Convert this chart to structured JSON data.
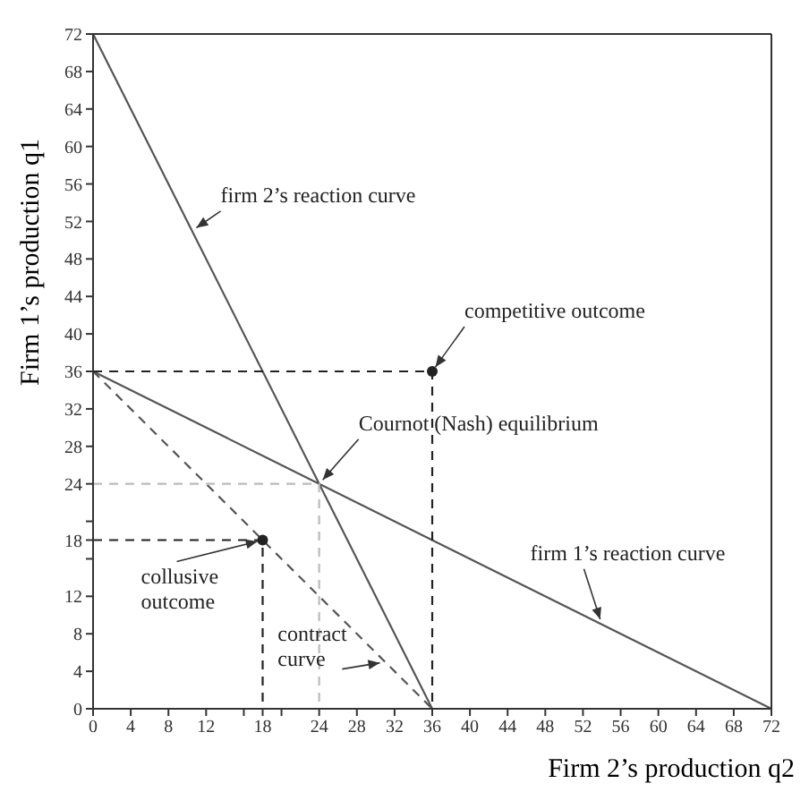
{
  "chart_data": {
    "type": "line",
    "xlabel": "Firm 2’s production q2",
    "ylabel": "Firm 1’s production q1",
    "xlim": [
      0,
      72
    ],
    "ylim": [
      0,
      72
    ],
    "xticks": [
      0,
      4,
      8,
      12,
      {
        "value": 16,
        "label": null
      },
      18,
      {
        "value": 20,
        "label": null
      },
      24,
      28,
      32,
      36,
      40,
      44,
      48,
      52,
      56,
      60,
      64,
      68,
      72
    ],
    "yticks": [
      0,
      4,
      8,
      12,
      {
        "value": 16,
        "label": null
      },
      18,
      {
        "value": 20,
        "label": null
      },
      24,
      28,
      32,
      36,
      40,
      44,
      48,
      52,
      56,
      60,
      64,
      68,
      72
    ],
    "marker": "none",
    "series": [
      {
        "x": [
          0,
          36
        ],
        "values": [
          72,
          0
        ],
        "color": "#555555",
        "line_style": "solid"
      },
      {
        "x": [
          0,
          72
        ],
        "values": [
          36,
          0
        ],
        "color": "#555555",
        "line_style": "solid"
      },
      {
        "x": [
          0,
          36
        ],
        "values": [
          36,
          0
        ],
        "color": "#555555",
        "line_style": "dashed"
      },
      {
        "x": [
          0,
          36,
          36
        ],
        "values": [
          36,
          36,
          0
        ],
        "color": "#222222",
        "line_style": "dashed"
      },
      {
        "x": [
          0,
          18,
          18
        ],
        "values": [
          18,
          18,
          0
        ],
        "color": "#222222",
        "line_style": "dashed"
      },
      {
        "x": [
          0,
          24,
          24
        ],
        "values": [
          24,
          24,
          0
        ],
        "color": "#bbbbbb",
        "line_style": "dashed"
      },
      {
        "type": "scatter",
        "x": [
          18,
          36
        ],
        "values": [
          18,
          36
        ],
        "color": "#222222",
        "marker": "circle"
      }
    ],
    "annotations": [
      {
        "text": "firm 2’s reaction curve",
        "x": 10.5,
        "y": 51
      },
      {
        "text": "competitive outcome",
        "x": 36,
        "y": 36
      },
      {
        "text": "Cournot (Nash) equilibrium",
        "x": 24,
        "y": 24
      },
      {
        "text": "firm 1’s reaction curve",
        "x": 54,
        "y": 9
      },
      {
        "text": "collusive outcome",
        "x": 18,
        "y": 18
      },
      {
        "text": "contract curve",
        "x": 31,
        "y": 5
      }
    ]
  }
}
